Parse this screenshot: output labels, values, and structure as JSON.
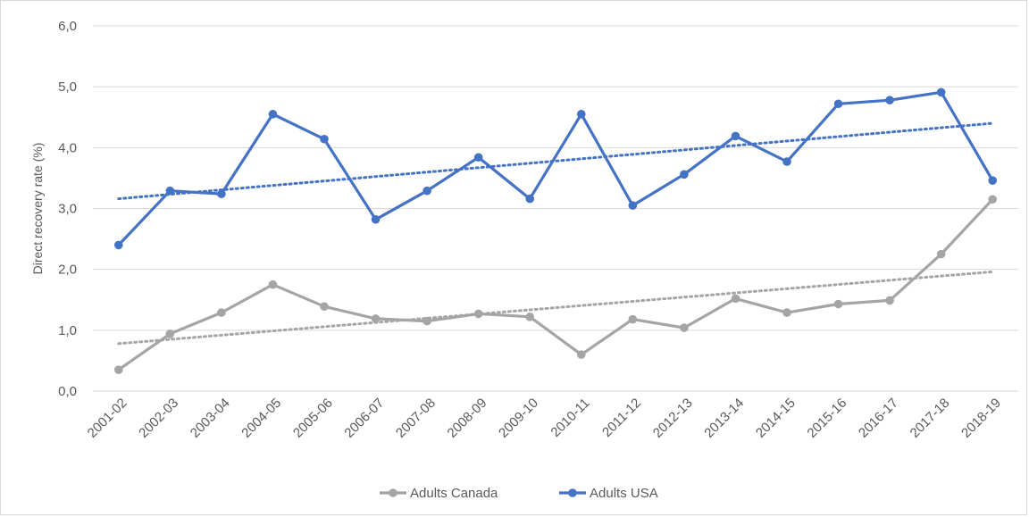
{
  "chart_data": {
    "type": "line",
    "title": "",
    "xlabel": "",
    "ylabel": "Direct recovery rate (%)",
    "ylim": [
      0,
      6
    ],
    "yticks": [
      "0,0",
      "1,0",
      "2,0",
      "3,0",
      "4,0",
      "5,0",
      "6,0"
    ],
    "grid": "horizontal",
    "legend_position": "bottom",
    "categories": [
      "2001-02",
      "2002-03",
      "2003-04",
      "2004-05",
      "2005-06",
      "2006-07",
      "2007-08",
      "2008-09",
      "2009-10",
      "2010-11",
      "2011-12",
      "2012-13",
      "2013-14",
      "2014-15",
      "2015-16",
      "2016-17",
      "2017-18",
      "2018-19"
    ],
    "series": [
      {
        "name": "Adults Canada",
        "color": "#a5a5a5",
        "values": [
          0.35,
          0.94,
          1.29,
          1.75,
          1.39,
          1.19,
          1.15,
          1.27,
          1.22,
          0.6,
          1.18,
          1.04,
          1.52,
          1.29,
          1.43,
          1.49,
          2.25,
          3.15
        ],
        "trendline": [
          0.78,
          1.96
        ]
      },
      {
        "name": "Adults USA",
        "color": "#4472c4",
        "values": [
          2.4,
          3.29,
          3.24,
          4.55,
          4.14,
          2.82,
          3.29,
          3.84,
          3.16,
          4.55,
          3.05,
          3.56,
          4.19,
          3.77,
          4.72,
          4.78,
          4.91,
          3.46
        ],
        "trendline": [
          3.16,
          4.4
        ]
      }
    ]
  }
}
